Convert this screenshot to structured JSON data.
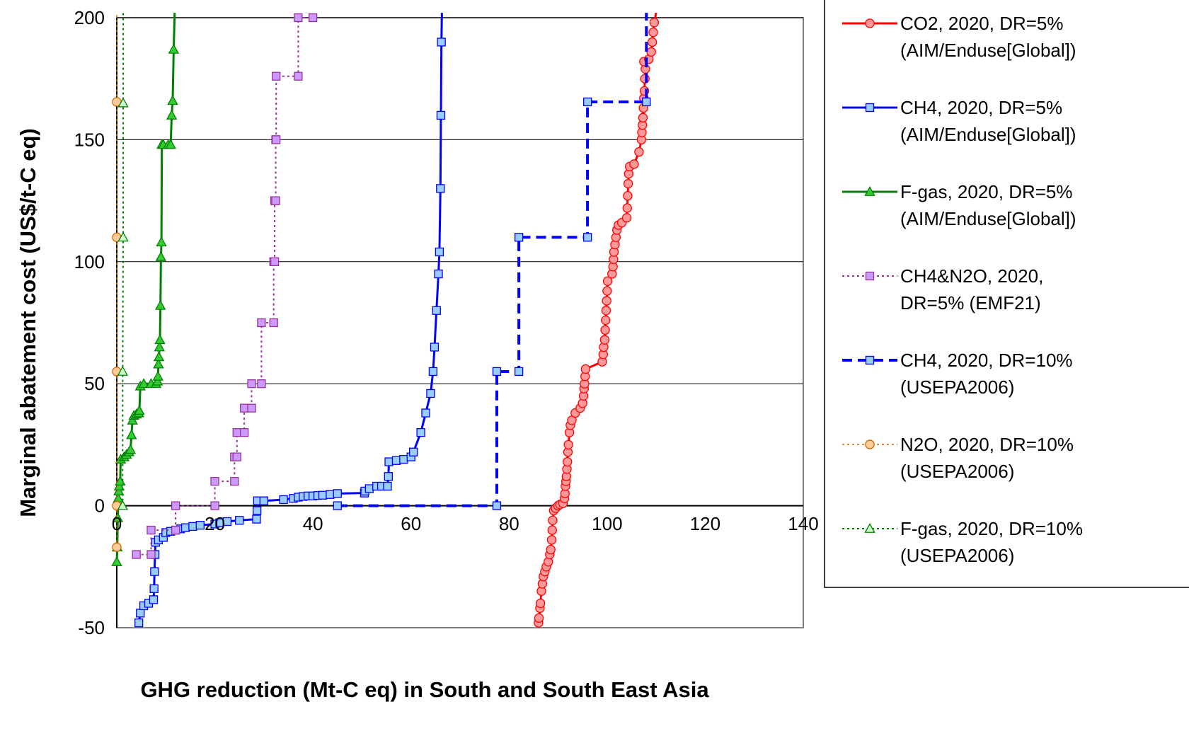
{
  "chart_data": {
    "type": "line",
    "title": "",
    "xlabel": "GHG reduction (Mt-C eq) in South and South East Asia",
    "ylabel": "Marginal abatement cost (US$/t-C eq)",
    "xlim": [
      0,
      140
    ],
    "ylim": [
      -50,
      200
    ],
    "xticks": [
      "0",
      "20",
      "40",
      "60",
      "80",
      "100",
      "120",
      "140"
    ],
    "yticks": [
      "-50",
      "0",
      "50",
      "100",
      "150",
      "200"
    ],
    "x_tick_values": [
      0,
      20,
      40,
      60,
      80,
      100,
      120,
      140
    ],
    "y_tick_values": [
      -50,
      0,
      50,
      100,
      150,
      200
    ],
    "negative_tick_color": "#ff0000",
    "grid": "horizontal",
    "legend_position": "right",
    "series": [
      {
        "name": "CO2, 2020, DR=5% (AIM/Enduse[Global])",
        "legend_lines": [
          "CO2, 2020, DR=5%",
          "(AIM/Enduse[Global])"
        ],
        "color": "#ff0000",
        "fill": "#ff9999",
        "marker": "circle",
        "dash": "solid",
        "width": 3,
        "step": false,
        "points": [
          [
            86,
            -48
          ],
          [
            86.1,
            -46
          ],
          [
            86.3,
            -42
          ],
          [
            86.4,
            -40
          ],
          [
            86.6,
            -35
          ],
          [
            86.8,
            -32
          ],
          [
            87,
            -29
          ],
          [
            87.3,
            -27
          ],
          [
            87.6,
            -25
          ],
          [
            88,
            -23
          ],
          [
            88.3,
            -20
          ],
          [
            88.5,
            -18
          ],
          [
            88.7,
            -14
          ],
          [
            88.8,
            -10
          ],
          [
            88.9,
            -6
          ],
          [
            89.1,
            -2
          ],
          [
            89.5,
            -1
          ],
          [
            90,
            0
          ],
          [
            90.4,
            0.5
          ],
          [
            91,
            1
          ],
          [
            91.3,
            3
          ],
          [
            91.4,
            5
          ],
          [
            91.5,
            8
          ],
          [
            91.6,
            10
          ],
          [
            91.7,
            12
          ],
          [
            91.8,
            15
          ],
          [
            91.9,
            18
          ],
          [
            92,
            22
          ],
          [
            92.1,
            25
          ],
          [
            92.3,
            30
          ],
          [
            92.5,
            33
          ],
          [
            92.8,
            35
          ],
          [
            93.5,
            38
          ],
          [
            94.5,
            40
          ],
          [
            95,
            42
          ],
          [
            95.2,
            45
          ],
          [
            95.3,
            48
          ],
          [
            95.4,
            50
          ],
          [
            95.5,
            53
          ],
          [
            95.6,
            56
          ],
          [
            99,
            59
          ],
          [
            99.2,
            62
          ],
          [
            99.3,
            65
          ],
          [
            99.5,
            68
          ],
          [
            99.6,
            72
          ],
          [
            99.7,
            76
          ],
          [
            99.8,
            80
          ],
          [
            99.9,
            84
          ],
          [
            100,
            88
          ],
          [
            100.1,
            92
          ],
          [
            101,
            95
          ],
          [
            101.2,
            98
          ],
          [
            101.3,
            101
          ],
          [
            101.4,
            104
          ],
          [
            101.6,
            107
          ],
          [
            101.8,
            110
          ],
          [
            102,
            113
          ],
          [
            102.3,
            115
          ],
          [
            103,
            116
          ],
          [
            104,
            118
          ],
          [
            104.1,
            122
          ],
          [
            104.2,
            127
          ],
          [
            104.3,
            132
          ],
          [
            104.4,
            136
          ],
          [
            104.6,
            139
          ],
          [
            105.5,
            140
          ],
          [
            106.5,
            145
          ],
          [
            107,
            150
          ],
          [
            107.1,
            153
          ],
          [
            107.2,
            156
          ],
          [
            107.3,
            159
          ],
          [
            107.4,
            163
          ],
          [
            107.5,
            167
          ],
          [
            107.6,
            170
          ],
          [
            107.7,
            175
          ],
          [
            107.8,
            179
          ],
          [
            107.5,
            182
          ],
          [
            108.5,
            183
          ],
          [
            109,
            186
          ],
          [
            109.2,
            190
          ],
          [
            109.4,
            194
          ],
          [
            109.6,
            198
          ],
          [
            110,
            202
          ]
        ]
      },
      {
        "name": "CH4, 2020, DR=5% (AIM/Enduse[Global])",
        "legend_lines": [
          "CH4, 2020, DR=5%",
          "(AIM/Enduse[Global])"
        ],
        "color": "#0000ff",
        "fill": "#99ccff",
        "marker": "square",
        "dash": "solid",
        "width": 3,
        "step": false,
        "points": [
          [
            4.5,
            -48
          ],
          [
            4.8,
            -44
          ],
          [
            5.5,
            -41
          ],
          [
            6.5,
            -40
          ],
          [
            7.5,
            -38.5
          ],
          [
            7.6,
            -34
          ],
          [
            7.7,
            -27
          ],
          [
            7.8,
            -20
          ],
          [
            7.9,
            -15
          ],
          [
            8.5,
            -14
          ],
          [
            9.5,
            -13
          ],
          [
            10,
            -11
          ],
          [
            11,
            -10.5
          ],
          [
            12,
            -10
          ],
          [
            13,
            -9.5
          ],
          [
            14,
            -9
          ],
          [
            15.5,
            -8.5
          ],
          [
            17,
            -8
          ],
          [
            20,
            -7.5
          ],
          [
            21,
            -7
          ],
          [
            22.5,
            -6.5
          ],
          [
            25,
            -6
          ],
          [
            28.5,
            -5.5
          ],
          [
            28.6,
            -2
          ],
          [
            28.7,
            2
          ],
          [
            30,
            2
          ],
          [
            34,
            2.5
          ],
          [
            36,
            3
          ],
          [
            37,
            3.5
          ],
          [
            38,
            3.8
          ],
          [
            39,
            4
          ],
          [
            40,
            4
          ],
          [
            41,
            4.2
          ],
          [
            42,
            4.3
          ],
          [
            43.5,
            4.6
          ],
          [
            45,
            5
          ],
          [
            50.5,
            5.2
          ],
          [
            50.6,
            6
          ],
          [
            51.5,
            7
          ],
          [
            53,
            8
          ],
          [
            54,
            8
          ],
          [
            55.2,
            8
          ],
          [
            55.4,
            12
          ],
          [
            55.5,
            18
          ],
          [
            57,
            18.5
          ],
          [
            58.5,
            19
          ],
          [
            60,
            20
          ],
          [
            60.5,
            22
          ],
          [
            62,
            30
          ],
          [
            63,
            38
          ],
          [
            64,
            46
          ],
          [
            64.5,
            55
          ],
          [
            64.8,
            65
          ],
          [
            65.2,
            80
          ],
          [
            65.6,
            95
          ],
          [
            65.8,
            104
          ],
          [
            66,
            130
          ],
          [
            66.1,
            160
          ],
          [
            66.2,
            190
          ],
          [
            66.3,
            202
          ]
        ]
      },
      {
        "name": "F-gas, 2020, DR=5% (AIM/Enduse[Global])",
        "legend_lines": [
          "F-gas, 2020, DR=5%",
          "(AIM/Enduse[Global])"
        ],
        "color": "#008000",
        "fill": "#33cc33",
        "marker": "triangle",
        "dash": "solid",
        "width": 3,
        "step": false,
        "points": [
          [
            0,
            -23
          ],
          [
            0.1,
            -17
          ],
          [
            0.2,
            -5
          ],
          [
            0.3,
            3
          ],
          [
            0.4,
            6
          ],
          [
            0.5,
            8
          ],
          [
            0.7,
            10
          ],
          [
            0.8,
            19
          ],
          [
            1.5,
            20
          ],
          [
            2,
            21
          ],
          [
            2.5,
            22
          ],
          [
            2.8,
            23
          ],
          [
            3,
            29
          ],
          [
            3.2,
            35
          ],
          [
            3.5,
            37
          ],
          [
            4,
            37.5
          ],
          [
            4.5,
            38
          ],
          [
            4.6,
            39
          ],
          [
            4.8,
            49
          ],
          [
            5.5,
            50
          ],
          [
            7,
            50
          ],
          [
            8,
            50
          ],
          [
            8.3,
            51
          ],
          [
            8.4,
            53
          ],
          [
            8.5,
            58
          ],
          [
            8.6,
            61
          ],
          [
            8.7,
            65
          ],
          [
            8.8,
            68
          ],
          [
            8.9,
            82
          ],
          [
            9,
            102
          ],
          [
            9.1,
            108
          ],
          [
            9.2,
            148
          ],
          [
            9.5,
            148
          ],
          [
            10.5,
            148
          ],
          [
            11,
            148
          ],
          [
            11.2,
            160
          ],
          [
            11.4,
            166
          ],
          [
            11.6,
            187
          ],
          [
            11.8,
            202
          ]
        ]
      },
      {
        "name": "CH4&N2O, 2020, DR=5% (EMF21)",
        "legend_lines": [
          "CH4&N2O, 2020,",
          "DR=5% (EMF21)"
        ],
        "color": "#993399",
        "fill": "#cc99ff",
        "marker": "square",
        "dash": "dotted",
        "width": 2,
        "step": true,
        "points": [
          [
            4,
            -20
          ],
          [
            7,
            -20
          ],
          [
            7,
            -10
          ],
          [
            12,
            -10
          ],
          [
            12,
            0
          ],
          [
            20,
            0
          ],
          [
            20,
            10
          ],
          [
            24,
            10
          ],
          [
            24,
            20
          ],
          [
            24.5,
            20
          ],
          [
            24.5,
            30
          ],
          [
            26,
            30
          ],
          [
            26,
            40
          ],
          [
            27.5,
            40
          ],
          [
            27.5,
            50
          ],
          [
            29.5,
            50
          ],
          [
            29.5,
            75
          ],
          [
            32,
            75
          ],
          [
            32,
            100
          ],
          [
            32.2,
            100
          ],
          [
            32.2,
            125
          ],
          [
            32.4,
            125
          ],
          [
            32.4,
            150
          ],
          [
            32.5,
            150
          ],
          [
            32.5,
            176
          ],
          [
            37,
            176
          ],
          [
            37,
            200
          ],
          [
            40,
            200
          ]
        ]
      },
      {
        "name": "CH4, 2020, DR=10% (USEPA2006)",
        "legend_lines": [
          "CH4, 2020, DR=10%",
          "(USEPA2006)"
        ],
        "color": "#0000ff",
        "fill": "#99ccff",
        "marker": "square",
        "dash": "dashed",
        "width": 4,
        "step": true,
        "points": [
          [
            45,
            0
          ],
          [
            77.5,
            0
          ],
          [
            77.5,
            55
          ],
          [
            82,
            55
          ],
          [
            82,
            110
          ],
          [
            96,
            110
          ],
          [
            96,
            165.5
          ],
          [
            108,
            165.5
          ],
          [
            108,
            202
          ]
        ]
      },
      {
        "name": "N2O, 2020, DR=10% (USEPA2006)",
        "legend_lines": [
          "N2O, 2020, DR=10%",
          "(USEPA2006)"
        ],
        "color": "#cc6600",
        "fill": "#ffcc99",
        "marker": "circle",
        "dash": "dotted",
        "width": 1.5,
        "step": false,
        "points": [
          [
            0,
            -17
          ],
          [
            0,
            0
          ],
          [
            0,
            55
          ],
          [
            0,
            110
          ],
          [
            0,
            165.5
          ],
          [
            0,
            202
          ]
        ]
      },
      {
        "name": "F-gas, 2020, DR=10% (USEPA2006)",
        "legend_lines": [
          "F-gas, 2020, DR=10%",
          "(USEPA2006)"
        ],
        "color": "#008000",
        "fill": "#ccffcc",
        "marker": "triangle",
        "dash": "dotted",
        "width": 2,
        "step": false,
        "points": [
          [
            1.2,
            0
          ],
          [
            1.2,
            55
          ],
          [
            1.3,
            110
          ],
          [
            1.3,
            165
          ],
          [
            1.3,
            202
          ]
        ]
      }
    ]
  }
}
